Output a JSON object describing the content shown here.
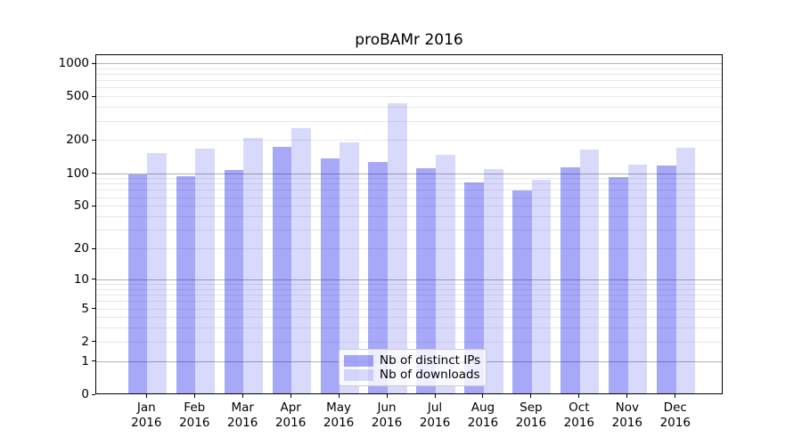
{
  "figure": {
    "title": "proBAMr 2016",
    "background": "#ffffff"
  },
  "chart_data": {
    "type": "bar",
    "title": "proBAMr 2016",
    "categories": [
      {
        "label": "Jan",
        "sublabel": "2016"
      },
      {
        "label": "Feb",
        "sublabel": "2016"
      },
      {
        "label": "Mar",
        "sublabel": "2016"
      },
      {
        "label": "Apr",
        "sublabel": "2016"
      },
      {
        "label": "May",
        "sublabel": "2016"
      },
      {
        "label": "Jun",
        "sublabel": "2016"
      },
      {
        "label": "Jul",
        "sublabel": "2016"
      },
      {
        "label": "Aug",
        "sublabel": "2016"
      },
      {
        "label": "Sep",
        "sublabel": "2016"
      },
      {
        "label": "Oct",
        "sublabel": "2016"
      },
      {
        "label": "Nov",
        "sublabel": "2016"
      },
      {
        "label": "Dec",
        "sublabel": "2016"
      }
    ],
    "series": [
      {
        "key": "distinct-ips",
        "name": "Nb of distinct IPs",
        "values": [
          96,
          92,
          104,
          172,
          135,
          125,
          108,
          81,
          68,
          110,
          91,
          116
        ],
        "color_hex": "#aaaaf9",
        "fill_rgba": "rgba(0,0,238,0.34)"
      },
      {
        "key": "downloads",
        "name": "Nb of downloads",
        "values": [
          150,
          165,
          205,
          252,
          188,
          428,
          143,
          107,
          85,
          162,
          118,
          167
        ],
        "color_hex": "#dadafb",
        "fill_rgba": "rgba(0,0,238,0.15)"
      }
    ],
    "xlabel": "",
    "ylabel": "",
    "yscale": "log1p",
    "ylim": [
      0,
      1205
    ],
    "yticks": [
      0,
      1,
      2,
      5,
      10,
      20,
      50,
      100,
      200,
      500,
      1000
    ],
    "grid": {
      "on": true,
      "major_values": [
        1,
        10,
        100,
        1000
      ],
      "minor_values": [
        2,
        3,
        4,
        5,
        6,
        7,
        8,
        9,
        20,
        30,
        40,
        50,
        60,
        70,
        80,
        90,
        200,
        300,
        400,
        500,
        600,
        700,
        800,
        900
      ],
      "major_color": "#b0b0b0",
      "minor_color": "#e9e9e9"
    },
    "legend": {
      "position": "lower center",
      "entries": [
        "Nb of distinct IPs",
        "Nb of downloads"
      ]
    }
  }
}
